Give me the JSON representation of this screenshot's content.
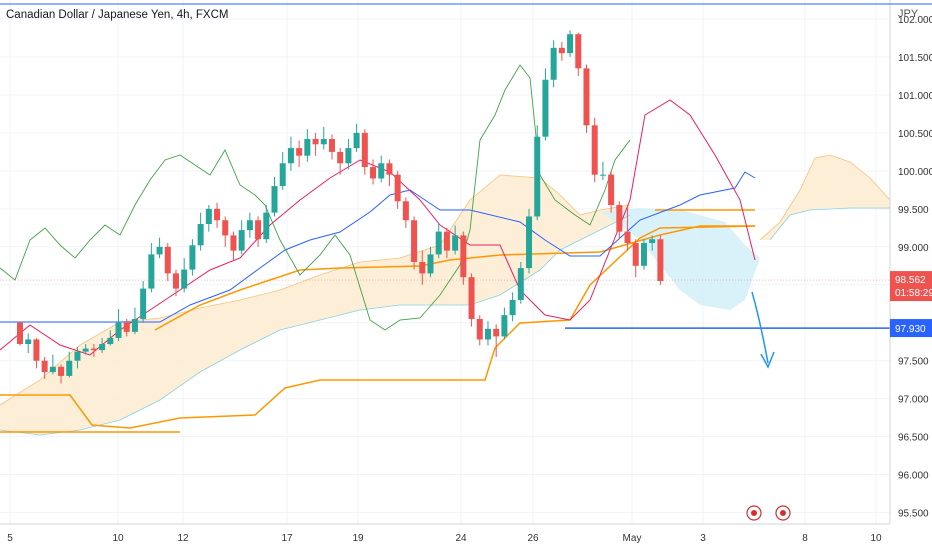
{
  "chart": {
    "title": "Canadian Dollar / Japanese Yen, 4h, FXCM",
    "currency": "JPY",
    "last_price": "98.562",
    "countdown": "01:58:29",
    "level_price": "97.930"
  },
  "colors": {
    "up": "#26a69a",
    "down": "#ef5350",
    "tenkan": "#e91e63",
    "kijun": "#2962ff",
    "lagging": "#43a047",
    "orange_level": "#ff9800",
    "cloud_bull": "#fdebd0",
    "cloud_bear": "#d5f0f7",
    "arrow": "#2196f3"
  },
  "chart_data": {
    "type": "candlestick",
    "symbol": "CADJPY",
    "interval": "4h",
    "y_axis": {
      "ticks": [
        "102.000",
        "101.500",
        "101.000",
        "100.500",
        "100.000",
        "99.500",
        "99.000",
        "98.500",
        "98.000",
        "97.500",
        "97.000",
        "96.500",
        "96.000",
        "95.500"
      ],
      "range": [
        95.35,
        102.25
      ]
    },
    "x_axis": {
      "ticks": [
        "5",
        "10",
        "12",
        "17",
        "19",
        "24",
        "26",
        "May",
        "3",
        "8",
        "10"
      ]
    },
    "candles": [
      [
        98.0,
        97.72,
        98.02,
        97.7
      ],
      [
        97.72,
        97.78,
        97.86,
        97.6
      ],
      [
        97.78,
        97.5,
        97.8,
        97.4
      ],
      [
        97.5,
        97.35,
        97.55,
        97.26
      ],
      [
        97.35,
        97.42,
        97.58,
        97.32
      ],
      [
        97.42,
        97.3,
        97.45,
        97.2
      ],
      [
        97.3,
        97.5,
        97.62,
        97.28
      ],
      [
        97.5,
        97.62,
        97.68,
        97.4
      ],
      [
        97.62,
        97.66,
        97.72,
        97.58
      ],
      [
        97.66,
        97.64,
        97.72,
        97.55
      ],
      [
        97.64,
        97.72,
        97.8,
        97.6
      ],
      [
        97.72,
        97.8,
        97.9,
        97.7
      ],
      [
        97.8,
        98.0,
        98.18,
        97.76
      ],
      [
        98.0,
        97.88,
        98.05,
        97.82
      ],
      [
        97.88,
        98.05,
        98.2,
        97.85
      ],
      [
        98.05,
        98.45,
        98.55,
        98.0
      ],
      [
        98.45,
        98.9,
        99.05,
        98.4
      ],
      [
        98.9,
        99.0,
        99.12,
        98.85
      ],
      [
        99.0,
        98.65,
        99.05,
        98.55
      ],
      [
        98.65,
        98.45,
        98.7,
        98.35
      ],
      [
        98.45,
        98.7,
        98.85,
        98.4
      ],
      [
        98.7,
        99.02,
        99.1,
        98.62
      ],
      [
        99.02,
        99.3,
        99.45,
        98.95
      ],
      [
        99.3,
        99.5,
        99.55,
        99.2
      ],
      [
        99.5,
        99.35,
        99.58,
        99.25
      ],
      [
        99.35,
        99.15,
        99.4,
        99.0
      ],
      [
        99.15,
        98.95,
        99.2,
        98.82
      ],
      [
        98.95,
        99.22,
        99.35,
        98.9
      ],
      [
        99.22,
        99.35,
        99.45,
        99.12
      ],
      [
        99.35,
        99.1,
        99.4,
        99.0
      ],
      [
        99.1,
        99.45,
        99.55,
        99.05
      ],
      [
        99.45,
        99.8,
        99.92,
        99.4
      ],
      [
        99.8,
        100.1,
        100.25,
        99.75
      ],
      [
        100.1,
        100.3,
        100.45,
        100.0
      ],
      [
        100.3,
        100.2,
        100.4,
        100.05
      ],
      [
        100.2,
        100.42,
        100.55,
        100.12
      ],
      [
        100.42,
        100.35,
        100.5,
        100.2
      ],
      [
        100.35,
        100.42,
        100.58,
        100.28
      ],
      [
        100.42,
        100.25,
        100.48,
        100.15
      ],
      [
        100.25,
        100.1,
        100.3,
        99.95
      ],
      [
        100.1,
        100.3,
        100.42,
        100.02
      ],
      [
        100.3,
        100.5,
        100.62,
        100.25
      ],
      [
        100.5,
        100.05,
        100.55,
        99.95
      ],
      [
        100.05,
        99.9,
        100.15,
        99.82
      ],
      [
        99.9,
        100.1,
        100.2,
        99.85
      ],
      [
        100.1,
        99.95,
        100.15,
        99.8
      ],
      [
        99.95,
        99.6,
        100.0,
        99.5
      ],
      [
        99.6,
        99.35,
        99.65,
        99.25
      ],
      [
        99.35,
        98.8,
        99.4,
        98.7
      ],
      [
        98.8,
        98.65,
        98.95,
        98.5
      ],
      [
        98.65,
        98.9,
        99.0,
        98.6
      ],
      [
        98.9,
        99.2,
        99.3,
        98.85
      ],
      [
        99.2,
        98.95,
        99.25,
        98.85
      ],
      [
        98.95,
        99.15,
        99.28,
        98.9
      ],
      [
        99.15,
        98.6,
        99.2,
        98.5
      ],
      [
        98.6,
        98.05,
        98.65,
        97.95
      ],
      [
        98.05,
        97.78,
        98.1,
        97.7
      ],
      [
        97.78,
        97.92,
        98.02,
        97.7
      ],
      [
        97.92,
        97.82,
        97.98,
        97.55
      ],
      [
        97.82,
        98.1,
        98.2,
        97.78
      ],
      [
        98.1,
        98.3,
        98.4,
        98.02
      ],
      [
        98.3,
        98.72,
        98.8,
        98.25
      ],
      [
        98.72,
        99.4,
        99.5,
        98.65
      ],
      [
        99.4,
        100.45,
        100.6,
        99.35
      ],
      [
        100.45,
        101.2,
        101.35,
        100.4
      ],
      [
        101.2,
        101.62,
        101.72,
        101.1
      ],
      [
        101.62,
        101.55,
        101.7,
        101.45
      ],
      [
        101.55,
        101.8,
        101.85,
        101.5
      ],
      [
        101.8,
        101.35,
        101.82,
        101.25
      ],
      [
        101.35,
        100.6,
        101.4,
        100.5
      ],
      [
        100.6,
        99.95,
        100.7,
        99.85
      ],
      [
        99.95,
        99.95,
        100.12,
        99.88
      ],
      [
        99.95,
        99.55,
        100.0,
        99.45
      ],
      [
        99.55,
        99.2,
        99.6,
        99.1
      ],
      [
        99.2,
        99.05,
        99.55,
        98.95
      ],
      [
        99.05,
        98.75,
        99.1,
        98.6
      ],
      [
        98.75,
        99.05,
        99.1,
        98.7
      ],
      [
        99.05,
        99.1,
        99.15,
        98.95
      ],
      [
        99.1,
        98.55,
        99.15,
        98.5
      ]
    ]
  }
}
